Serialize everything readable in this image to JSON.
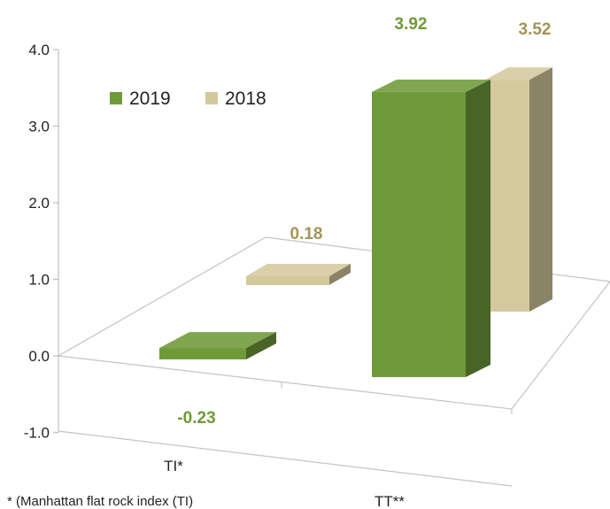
{
  "chart_data": {
    "type": "bar",
    "three_d": true,
    "categories": [
      "TI*",
      "TT**"
    ],
    "series": [
      {
        "name": "2019",
        "values": [
          -0.23,
          3.92
        ],
        "color": "#6f9a3a"
      },
      {
        "name": "2018",
        "values": [
          0.18,
          3.52
        ],
        "color": "#d4c99c"
      }
    ],
    "data_labels": {
      "2019": [
        "-0.23",
        "3.92"
      ],
      "2018": [
        "0.18",
        "3.52"
      ]
    },
    "y_ticks": [
      "4.0",
      "3.0",
      "2.0",
      "1.0",
      "0.0",
      "-1.0"
    ],
    "ylim": [
      -1,
      4
    ],
    "legend_position": "top-left",
    "label_colors": {
      "2019": "#6f9a3a",
      "2018": "#a39457"
    },
    "footnote": "* (Manhattan flat rock index (TI)"
  }
}
